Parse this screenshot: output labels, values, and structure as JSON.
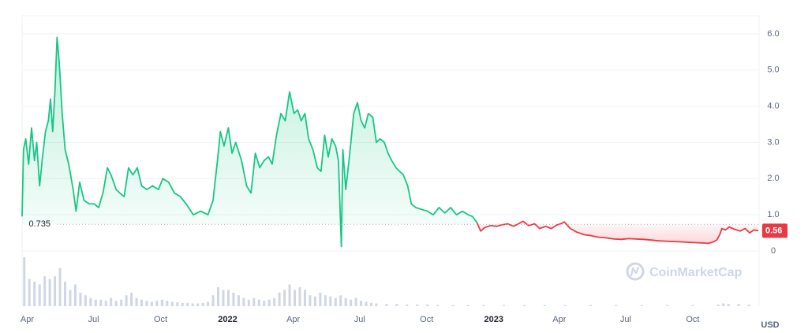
{
  "chart_data": {
    "type": "area",
    "currency": "USD",
    "reference_line": {
      "value": 0.735,
      "label": "0.735"
    },
    "current_price": {
      "value": 0.56,
      "label": "0.56"
    },
    "colors": {
      "up": "#16c784",
      "down": "#ea3943",
      "volume": "#cfd6e4",
      "grid": "#eff2f5",
      "text": "#58667e"
    },
    "ylim": [
      0,
      6.5
    ],
    "y_ticks": [
      {
        "value": 0,
        "label": "0"
      },
      {
        "value": 1,
        "label": "1.0"
      },
      {
        "value": 2,
        "label": "2.0"
      },
      {
        "value": 3,
        "label": "3.0"
      },
      {
        "value": 4,
        "label": "4.0"
      },
      {
        "value": 5,
        "label": "5.0"
      },
      {
        "value": 6,
        "label": "6.0"
      }
    ],
    "x_range": [
      "2021-03-25",
      "2023-12-31"
    ],
    "x_ticks": [
      {
        "date": "2021-04-01",
        "label": "Apr",
        "year": false
      },
      {
        "date": "2021-07-01",
        "label": "Jul",
        "year": false
      },
      {
        "date": "2021-10-01",
        "label": "Oct",
        "year": false
      },
      {
        "date": "2022-01-01",
        "label": "2022",
        "year": true
      },
      {
        "date": "2022-04-01",
        "label": "Apr",
        "year": false
      },
      {
        "date": "2022-07-01",
        "label": "Jul",
        "year": false
      },
      {
        "date": "2022-10-01",
        "label": "Oct",
        "year": false
      },
      {
        "date": "2023-01-01",
        "label": "2023",
        "year": true
      },
      {
        "date": "2023-04-01",
        "label": "Apr",
        "year": false
      },
      {
        "date": "2023-07-01",
        "label": "Jul",
        "year": false
      },
      {
        "date": "2023-10-01",
        "label": "Oct",
        "year": false
      }
    ],
    "series": [
      {
        "points": [
          [
            "2021-03-25",
            0.95
          ],
          [
            "2021-03-27",
            2.8
          ],
          [
            "2021-03-30",
            3.1
          ],
          [
            "2021-04-03",
            2.4
          ],
          [
            "2021-04-07",
            3.4
          ],
          [
            "2021-04-11",
            2.5
          ],
          [
            "2021-04-14",
            3.0
          ],
          [
            "2021-04-18",
            1.8
          ],
          [
            "2021-04-22",
            2.6
          ],
          [
            "2021-04-26",
            3.3
          ],
          [
            "2021-04-30",
            3.6
          ],
          [
            "2021-05-03",
            4.2
          ],
          [
            "2021-05-06",
            3.3
          ],
          [
            "2021-05-09",
            4.4
          ],
          [
            "2021-05-12",
            5.9
          ],
          [
            "2021-05-15",
            5.2
          ],
          [
            "2021-05-19",
            3.8
          ],
          [
            "2021-05-23",
            2.8
          ],
          [
            "2021-05-28",
            2.4
          ],
          [
            "2021-06-03",
            1.7
          ],
          [
            "2021-06-07",
            1.1
          ],
          [
            "2021-06-12",
            1.9
          ],
          [
            "2021-06-18",
            1.4
          ],
          [
            "2021-06-25",
            1.3
          ],
          [
            "2021-07-02",
            1.3
          ],
          [
            "2021-07-08",
            1.2
          ],
          [
            "2021-07-14",
            1.6
          ],
          [
            "2021-07-20",
            2.3
          ],
          [
            "2021-07-25",
            2.1
          ],
          [
            "2021-08-01",
            1.7
          ],
          [
            "2021-08-06",
            1.6
          ],
          [
            "2021-08-12",
            1.5
          ],
          [
            "2021-08-18",
            2.3
          ],
          [
            "2021-08-24",
            2.1
          ],
          [
            "2021-08-30",
            2.3
          ],
          [
            "2021-09-05",
            1.8
          ],
          [
            "2021-09-12",
            1.7
          ],
          [
            "2021-09-20",
            1.8
          ],
          [
            "2021-09-28",
            1.7
          ],
          [
            "2021-10-04",
            2.0
          ],
          [
            "2021-10-12",
            1.9
          ],
          [
            "2021-10-20",
            1.6
          ],
          [
            "2021-10-28",
            1.5
          ],
          [
            "2021-11-05",
            1.3
          ],
          [
            "2021-11-15",
            1.0
          ],
          [
            "2021-11-25",
            1.1
          ],
          [
            "2021-12-05",
            1.0
          ],
          [
            "2021-12-12",
            1.4
          ],
          [
            "2021-12-18",
            2.5
          ],
          [
            "2021-12-22",
            3.3
          ],
          [
            "2021-12-27",
            2.9
          ],
          [
            "2022-01-02",
            3.4
          ],
          [
            "2022-01-07",
            2.7
          ],
          [
            "2022-01-12",
            3.0
          ],
          [
            "2022-01-20",
            2.5
          ],
          [
            "2022-01-27",
            1.8
          ],
          [
            "2022-02-02",
            1.6
          ],
          [
            "2022-02-08",
            2.7
          ],
          [
            "2022-02-14",
            2.3
          ],
          [
            "2022-02-20",
            2.5
          ],
          [
            "2022-02-26",
            2.6
          ],
          [
            "2022-03-03",
            2.4
          ],
          [
            "2022-03-09",
            3.2
          ],
          [
            "2022-03-15",
            3.8
          ],
          [
            "2022-03-21",
            3.6
          ],
          [
            "2022-03-27",
            4.4
          ],
          [
            "2022-04-02",
            3.8
          ],
          [
            "2022-04-07",
            3.9
          ],
          [
            "2022-04-12",
            3.6
          ],
          [
            "2022-04-17",
            3.8
          ],
          [
            "2022-04-22",
            3.1
          ],
          [
            "2022-04-28",
            2.8
          ],
          [
            "2022-05-04",
            2.3
          ],
          [
            "2022-05-09",
            2.2
          ],
          [
            "2022-05-14",
            3.2
          ],
          [
            "2022-05-19",
            2.6
          ],
          [
            "2022-05-24",
            3.1
          ],
          [
            "2022-05-29",
            2.9
          ],
          [
            "2022-06-02",
            2.5
          ],
          [
            "2022-06-06",
            0.12
          ],
          [
            "2022-06-08",
            2.8
          ],
          [
            "2022-06-12",
            1.7
          ],
          [
            "2022-06-17",
            2.6
          ],
          [
            "2022-06-23",
            3.8
          ],
          [
            "2022-06-28",
            4.1
          ],
          [
            "2022-07-03",
            3.6
          ],
          [
            "2022-07-08",
            3.4
          ],
          [
            "2022-07-13",
            3.8
          ],
          [
            "2022-07-19",
            3.7
          ],
          [
            "2022-07-24",
            3.0
          ],
          [
            "2022-07-29",
            3.1
          ],
          [
            "2022-08-04",
            3.0
          ],
          [
            "2022-08-09",
            2.7
          ],
          [
            "2022-08-14",
            2.5
          ],
          [
            "2022-08-20",
            2.3
          ],
          [
            "2022-08-25",
            2.2
          ],
          [
            "2022-08-30",
            2.1
          ],
          [
            "2022-09-05",
            1.8
          ],
          [
            "2022-09-10",
            1.3
          ],
          [
            "2022-09-16",
            1.2
          ],
          [
            "2022-09-24",
            1.15
          ],
          [
            "2022-10-02",
            1.1
          ],
          [
            "2022-10-10",
            1.0
          ],
          [
            "2022-10-18",
            1.2
          ],
          [
            "2022-10-26",
            1.05
          ],
          [
            "2022-11-03",
            1.2
          ],
          [
            "2022-11-11",
            1.0
          ],
          [
            "2022-11-19",
            1.1
          ],
          [
            "2022-11-27",
            1.0
          ],
          [
            "2022-12-03",
            0.95
          ],
          [
            "2022-12-09",
            0.78
          ]
        ]
      },
      {
        "points": [
          [
            "2022-12-09",
            0.78
          ],
          [
            "2022-12-14",
            0.55
          ],
          [
            "2022-12-20",
            0.65
          ],
          [
            "2022-12-28",
            0.7
          ],
          [
            "2023-01-05",
            0.68
          ],
          [
            "2023-01-12",
            0.72
          ],
          [
            "2023-01-20",
            0.75
          ],
          [
            "2023-01-28",
            0.68
          ],
          [
            "2023-02-04",
            0.75
          ],
          [
            "2023-02-10",
            0.82
          ],
          [
            "2023-02-18",
            0.7
          ],
          [
            "2023-02-26",
            0.75
          ],
          [
            "2023-03-05",
            0.62
          ],
          [
            "2023-03-13",
            0.68
          ],
          [
            "2023-03-21",
            0.62
          ],
          [
            "2023-03-29",
            0.72
          ],
          [
            "2023-04-04",
            0.76
          ],
          [
            "2023-04-08",
            0.8
          ],
          [
            "2023-04-16",
            0.62
          ],
          [
            "2023-04-25",
            0.52
          ],
          [
            "2023-05-05",
            0.45
          ],
          [
            "2023-05-15",
            0.42
          ],
          [
            "2023-05-25",
            0.38
          ],
          [
            "2023-06-05",
            0.36
          ],
          [
            "2023-06-15",
            0.33
          ],
          [
            "2023-06-25",
            0.32
          ],
          [
            "2023-07-05",
            0.34
          ],
          [
            "2023-07-15",
            0.33
          ],
          [
            "2023-07-25",
            0.32
          ],
          [
            "2023-08-05",
            0.3
          ],
          [
            "2023-08-15",
            0.28
          ],
          [
            "2023-08-25",
            0.27
          ],
          [
            "2023-09-05",
            0.26
          ],
          [
            "2023-09-15",
            0.25
          ],
          [
            "2023-09-25",
            0.24
          ],
          [
            "2023-10-05",
            0.23
          ],
          [
            "2023-10-15",
            0.22
          ],
          [
            "2023-10-22",
            0.21
          ],
          [
            "2023-10-28",
            0.24
          ],
          [
            "2023-11-03",
            0.3
          ],
          [
            "2023-11-07",
            0.45
          ],
          [
            "2023-11-10",
            0.62
          ],
          [
            "2023-11-15",
            0.58
          ],
          [
            "2023-11-20",
            0.66
          ],
          [
            "2023-11-27",
            0.6
          ],
          [
            "2023-12-05",
            0.55
          ],
          [
            "2023-12-12",
            0.62
          ],
          [
            "2023-12-18",
            0.5
          ],
          [
            "2023-12-24",
            0.58
          ],
          [
            "2023-12-30",
            0.56
          ]
        ]
      }
    ],
    "volume": [
      [
        "2021-03-28",
        0.9
      ],
      [
        "2021-04-04",
        0.5
      ],
      [
        "2021-04-11",
        0.45
      ],
      [
        "2021-04-18",
        0.4
      ],
      [
        "2021-04-25",
        0.55
      ],
      [
        "2021-05-02",
        0.5
      ],
      [
        "2021-05-09",
        0.55
      ],
      [
        "2021-05-16",
        0.7
      ],
      [
        "2021-05-23",
        0.45
      ],
      [
        "2021-05-30",
        0.3
      ],
      [
        "2021-06-06",
        0.4
      ],
      [
        "2021-06-13",
        0.25
      ],
      [
        "2021-06-20",
        0.2
      ],
      [
        "2021-06-27",
        0.15
      ],
      [
        "2021-07-04",
        0.12
      ],
      [
        "2021-07-11",
        0.12
      ],
      [
        "2021-07-18",
        0.1
      ],
      [
        "2021-07-25",
        0.15
      ],
      [
        "2021-08-01",
        0.1
      ],
      [
        "2021-08-08",
        0.12
      ],
      [
        "2021-08-15",
        0.2
      ],
      [
        "2021-08-22",
        0.25
      ],
      [
        "2021-08-29",
        0.15
      ],
      [
        "2021-09-05",
        0.12
      ],
      [
        "2021-09-12",
        0.1
      ],
      [
        "2021-09-19",
        0.08
      ],
      [
        "2021-09-26",
        0.1
      ],
      [
        "2021-10-03",
        0.12
      ],
      [
        "2021-10-10",
        0.1
      ],
      [
        "2021-10-17",
        0.08
      ],
      [
        "2021-10-24",
        0.07
      ],
      [
        "2021-10-31",
        0.06
      ],
      [
        "2021-11-07",
        0.06
      ],
      [
        "2021-11-14",
        0.05
      ],
      [
        "2021-11-21",
        0.05
      ],
      [
        "2021-11-28",
        0.06
      ],
      [
        "2021-12-05",
        0.08
      ],
      [
        "2021-12-12",
        0.2
      ],
      [
        "2021-12-19",
        0.35
      ],
      [
        "2021-12-26",
        0.3
      ],
      [
        "2022-01-02",
        0.3
      ],
      [
        "2022-01-09",
        0.25
      ],
      [
        "2022-01-16",
        0.2
      ],
      [
        "2022-01-23",
        0.15
      ],
      [
        "2022-01-30",
        0.12
      ],
      [
        "2022-02-06",
        0.15
      ],
      [
        "2022-02-13",
        0.12
      ],
      [
        "2022-02-20",
        0.1
      ],
      [
        "2022-02-27",
        0.12
      ],
      [
        "2022-03-06",
        0.15
      ],
      [
        "2022-03-13",
        0.25
      ],
      [
        "2022-03-20",
        0.3
      ],
      [
        "2022-03-27",
        0.4
      ],
      [
        "2022-04-03",
        0.3
      ],
      [
        "2022-04-10",
        0.35
      ],
      [
        "2022-04-17",
        0.3
      ],
      [
        "2022-04-24",
        0.2
      ],
      [
        "2022-05-01",
        0.18
      ],
      [
        "2022-05-08",
        0.25
      ],
      [
        "2022-05-15",
        0.2
      ],
      [
        "2022-05-22",
        0.18
      ],
      [
        "2022-05-29",
        0.15
      ],
      [
        "2022-06-05",
        0.2
      ],
      [
        "2022-06-12",
        0.15
      ],
      [
        "2022-06-19",
        0.12
      ],
      [
        "2022-06-26",
        0.15
      ],
      [
        "2022-07-03",
        0.1
      ],
      [
        "2022-07-10",
        0.08
      ],
      [
        "2022-07-17",
        0.06
      ],
      [
        "2022-07-24",
        0.05
      ],
      [
        "2022-08-07",
        0.04
      ],
      [
        "2022-08-21",
        0.04
      ],
      [
        "2022-09-04",
        0.03
      ],
      [
        "2022-09-18",
        0.03
      ],
      [
        "2022-10-02",
        0.03
      ],
      [
        "2022-10-16",
        0.02
      ],
      [
        "2022-11-06",
        0.02
      ],
      [
        "2022-11-27",
        0.02
      ],
      [
        "2022-12-18",
        0.02
      ],
      [
        "2023-01-15",
        0.02
      ],
      [
        "2023-02-12",
        0.02
      ],
      [
        "2023-03-12",
        0.02
      ],
      [
        "2023-04-09",
        0.02
      ],
      [
        "2023-05-14",
        0.02
      ],
      [
        "2023-06-18",
        0.02
      ],
      [
        "2023-07-23",
        0.02
      ],
      [
        "2023-08-27",
        0.02
      ],
      [
        "2023-10-01",
        0.02
      ],
      [
        "2023-11-05",
        0.03
      ],
      [
        "2023-11-12",
        0.05
      ],
      [
        "2023-11-19",
        0.04
      ],
      [
        "2023-12-03",
        0.04
      ],
      [
        "2023-12-17",
        0.03
      ]
    ]
  },
  "watermark": {
    "text": "CoinMarketCap"
  }
}
